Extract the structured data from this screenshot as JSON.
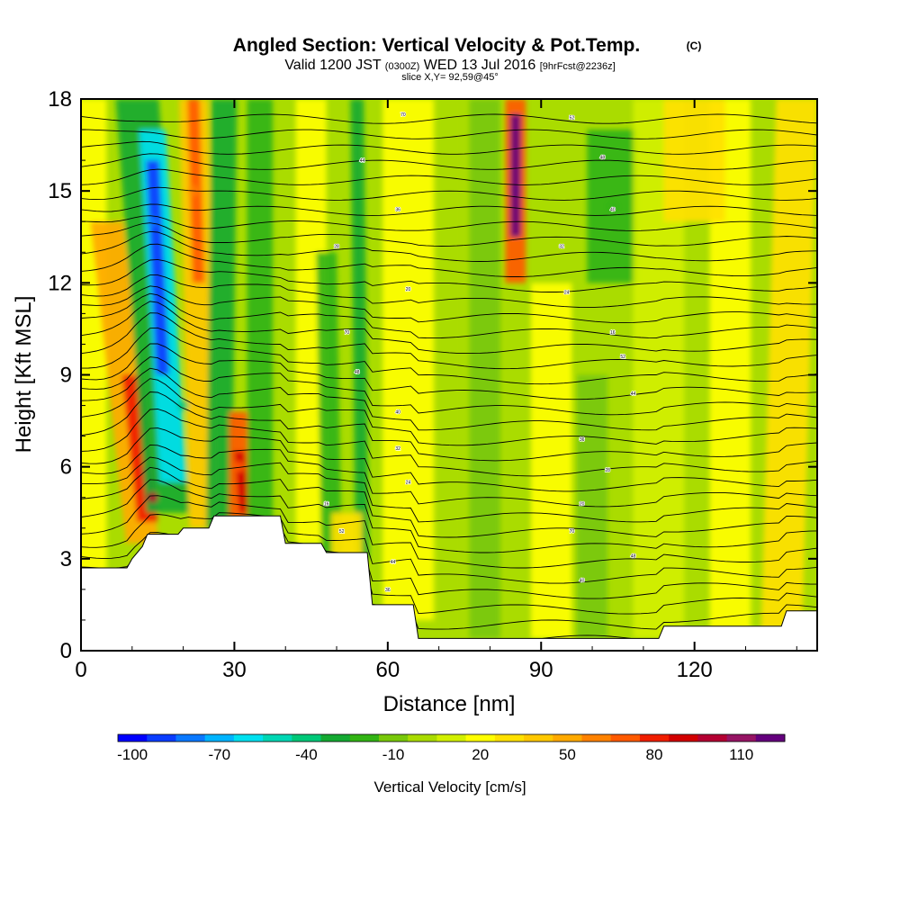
{
  "title": {
    "main": "Angled Section: Vertical Velocity & Pot.Temp.",
    "unit_tag": "(C)",
    "valid_prefix": "Valid 1200 JST",
    "valid_utc": "(0300Z)",
    "valid_date": "WED 13 Jul 2016",
    "forecast": "[9hrFcst@2236z]",
    "slice": "slice X,Y= 92,59@45°"
  },
  "chart_data": {
    "type": "heatmap",
    "xlabel": "Distance [nm]",
    "ylabel": "Height [Kft MSL]",
    "xlim": [
      0,
      144
    ],
    "ylim": [
      0,
      18
    ],
    "x_ticks": [
      0,
      30,
      60,
      90,
      120
    ],
    "y_ticks": [
      0,
      3,
      6,
      9,
      12,
      15,
      18
    ],
    "colorbar": {
      "label": "Vertical Velocity [cm/s]",
      "tick_labels": [
        "-100",
        "-70",
        "-40",
        "-10",
        "20",
        "50",
        "80",
        "110"
      ],
      "levels": [
        -100,
        -90,
        -80,
        -70,
        -60,
        -50,
        -40,
        -30,
        -20,
        -10,
        0,
        10,
        20,
        30,
        40,
        50,
        60,
        70,
        80,
        90,
        100,
        110,
        120
      ],
      "colors": [
        "#0000ff",
        "#0a3cff",
        "#0a78ff",
        "#00b4ff",
        "#00e1f0",
        "#00d7b4",
        "#00c878",
        "#14aa32",
        "#32b414",
        "#78c80a",
        "#aadc00",
        "#d2f000",
        "#ffff00",
        "#ffe100",
        "#ffc800",
        "#ffaa00",
        "#ff8200",
        "#ff5a00",
        "#f01e00",
        "#d20000",
        "#b40032",
        "#961464",
        "#64007d"
      ]
    },
    "contour_labels": [
      "70",
      "52",
      "48",
      "44",
      "40",
      "36",
      "32",
      "28",
      "24",
      "20",
      "16"
    ],
    "cells": [
      {
        "x": 14,
        "y": 14.0,
        "w": -85
      },
      {
        "x": 14,
        "y": 5.0,
        "w": 95
      },
      {
        "x": 22,
        "y": 15.0,
        "w": 60
      },
      {
        "x": 31,
        "y": 6.0,
        "w": 70
      },
      {
        "x": 85,
        "y": 15.0,
        "w": 115
      },
      {
        "x": 20,
        "y": 8.0,
        "w": -40
      },
      {
        "x": 104,
        "y": 14.5,
        "w": -25
      }
    ]
  }
}
